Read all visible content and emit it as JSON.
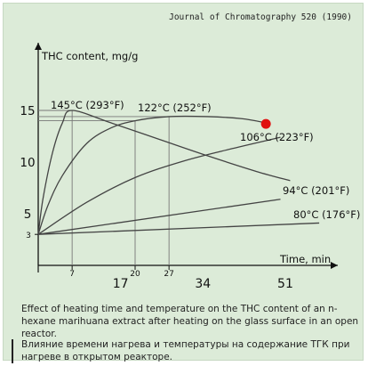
{
  "source": "Journal of Chromatography 520 (1990)",
  "caption_en": "Effect of heating time and temperature on the THC content of an n-hexane marihuana extract after heating on the glass surface in an open reactor.",
  "caption_ru": "Влияние времени нагрева и температуры на содержание ТГК при нагреве в открытом реакторе.",
  "colors": {
    "background": "#dcebd8",
    "line": "#444444",
    "marker": "#e01010"
  },
  "chart_data": {
    "type": "line",
    "title": "",
    "ylabel": "THC content, mg/g",
    "xlabel": "Time, min",
    "xlim": [
      0,
      60
    ],
    "ylim": [
      0,
      18
    ],
    "x_ticks": [
      7,
      20,
      27
    ],
    "x_ticks_large": [
      17,
      34,
      51
    ],
    "y_ticks": [
      3,
      5,
      10,
      15
    ],
    "series": [
      {
        "name": "145°C (293°F)",
        "x": [
          0,
          1,
          3,
          5,
          7,
          15,
          25,
          35,
          45,
          52
        ],
        "y": [
          3,
          6.5,
          11,
          13.8,
          15,
          13.8,
          12.2,
          10.6,
          9.1,
          8.2
        ]
      },
      {
        "name": "122°C (252°F)",
        "x": [
          0,
          2,
          5,
          10,
          15,
          20,
          27,
          35,
          42,
          47
        ],
        "y": [
          3,
          5.8,
          8.7,
          11.8,
          13.3,
          14,
          14.4,
          14.4,
          14.2,
          13.8
        ]
      },
      {
        "name": "106°C (223°F)",
        "x": [
          0,
          10,
          20,
          30,
          40,
          50
        ],
        "y": [
          3,
          6.1,
          8.5,
          10.1,
          11.3,
          12.4
        ]
      },
      {
        "name": "94°C (201°F)",
        "x": [
          0,
          50
        ],
        "y": [
          3,
          6.4
        ]
      },
      {
        "name": "80°C (176°F)",
        "x": [
          0,
          58
        ],
        "y": [
          3,
          4.1
        ]
      }
    ],
    "guides": [
      {
        "x": 7,
        "y": 15
      },
      {
        "x": 20,
        "y": 14
      },
      {
        "x": 27,
        "y": 14.4
      }
    ],
    "extra_points": [
      {
        "x": 47,
        "y": 13.7
      }
    ],
    "grid": false,
    "legend": "labels placed at line ends"
  }
}
